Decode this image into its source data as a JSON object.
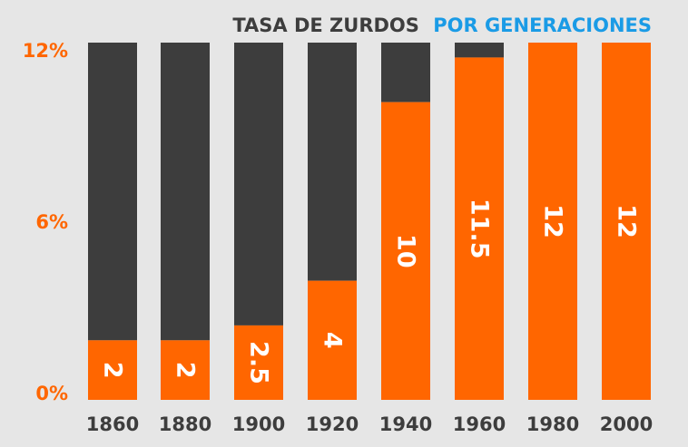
{
  "title": {
    "part1": "TASA DE ZURDOS",
    "part2": "POR GENERACIONES"
  },
  "colors": {
    "background": "#e6e6e6",
    "bar_fill": "#ff6600",
    "bar_remainder": "#3d3d3d",
    "title_dark": "#3d3d3d",
    "title_accent": "#1a9be6",
    "y_tick": "#ff6600",
    "x_tick": "#3d3d3d",
    "data_label": "#ffffff"
  },
  "chart_data": {
    "type": "bar",
    "title": "TASA DE ZURDOS POR GENERACIONES",
    "xlabel": "",
    "ylabel": "",
    "ylim": [
      0,
      12
    ],
    "categories": [
      "1860",
      "1880",
      "1900",
      "1920",
      "1940",
      "1960",
      "1980",
      "2000"
    ],
    "values": [
      2,
      2,
      2.5,
      4,
      10,
      11.5,
      12,
      12
    ],
    "data_labels": [
      "2",
      "2",
      "2.5",
      "4",
      "10",
      "11.5",
      "12",
      "12"
    ],
    "y_ticks": [
      {
        "value": 0,
        "label": "0%"
      },
      {
        "value": 6,
        "label": "6%"
      },
      {
        "value": 12,
        "label": "12%"
      }
    ],
    "grid": false,
    "legend": "none",
    "data_label_rotation": "vertical"
  }
}
